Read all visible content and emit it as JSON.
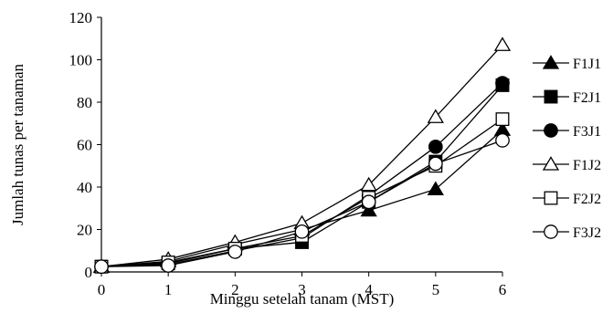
{
  "chart_data": {
    "type": "line",
    "x": [
      0,
      1,
      2,
      3,
      4,
      5,
      6
    ],
    "xlabel": "Minggu setelah tanam (MST)",
    "ylabel": "Jumlah tunas per tanaman",
    "xlim": [
      0,
      6
    ],
    "ylim": [
      0,
      120
    ],
    "xticks": [
      "0",
      "1",
      "2",
      "3",
      "4",
      "5",
      "6"
    ],
    "yticks": [
      "0",
      "20",
      "40",
      "60",
      "80",
      "100",
      "120"
    ],
    "grid": false,
    "legend_position": "right",
    "series": [
      {
        "name": "F1J1",
        "marker": "triangle",
        "fill": "#000000",
        "values": [
          2.5,
          5,
          13,
          20,
          29,
          39,
          67
        ]
      },
      {
        "name": "F2J1",
        "marker": "square",
        "fill": "#000000",
        "values": [
          2.5,
          4,
          11,
          14,
          33,
          52,
          88
        ]
      },
      {
        "name": "F3J1",
        "marker": "circle",
        "fill": "#000000",
        "values": [
          2.5,
          3.5,
          10,
          16,
          36,
          59,
          89
        ]
      },
      {
        "name": "F1J2",
        "marker": "triangle",
        "fill": "#ffffff",
        "values": [
          2.5,
          6,
          14,
          23,
          41,
          73,
          107
        ]
      },
      {
        "name": "F2J2",
        "marker": "square",
        "fill": "#ffffff",
        "values": [
          2.5,
          4.5,
          11,
          17,
          35,
          50,
          72
        ]
      },
      {
        "name": "F3J2",
        "marker": "circle",
        "fill": "#ffffff",
        "values": [
          2.5,
          3,
          9.5,
          19,
          33,
          51,
          62
        ]
      }
    ]
  }
}
